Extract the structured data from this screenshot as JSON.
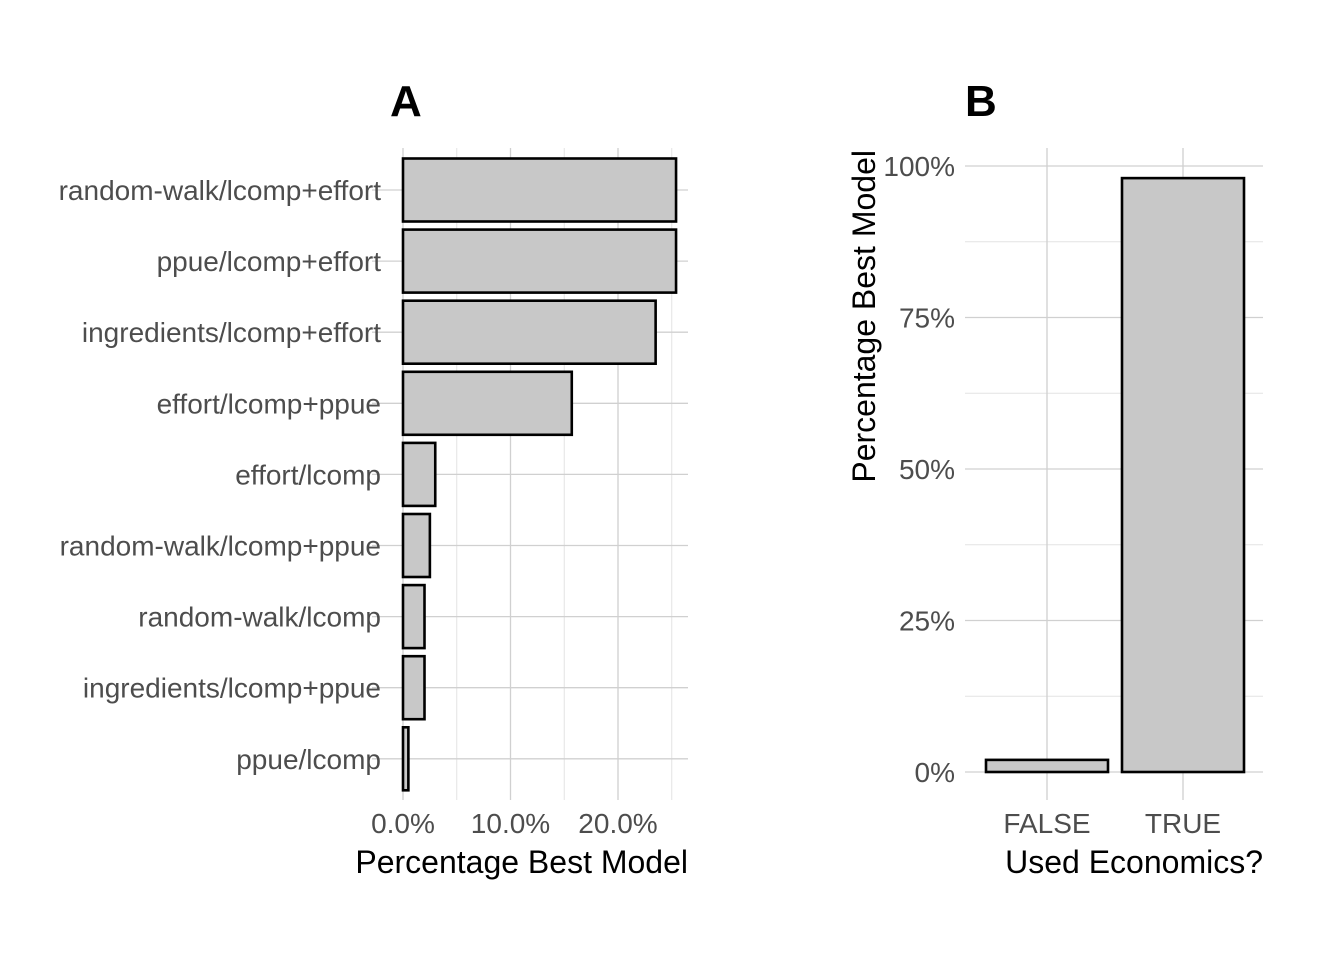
{
  "chart_data": [
    {
      "panel": "A",
      "type": "bar",
      "orientation": "horizontal",
      "categories": [
        "random-walk/lcomp+effort",
        "ppue/lcomp+effort",
        "ingredients/lcomp+effort",
        "effort/lcomp+ppue",
        "effort/lcomp",
        "random-walk/lcomp+ppue",
        "random-walk/lcomp",
        "ingredients/lcomp+ppue",
        "ppue/lcomp"
      ],
      "values": [
        25.4,
        25.4,
        23.5,
        15.7,
        3.0,
        2.5,
        2.0,
        2.0,
        0.5
      ],
      "xlabel": "Percentage Best Model",
      "ylabel": "",
      "xlim": [
        0,
        26.5
      ],
      "x_ticks": [
        0,
        10,
        20
      ],
      "x_tick_labels": [
        "0.0%",
        "10.0%",
        "20.0%"
      ],
      "grid": true
    },
    {
      "panel": "B",
      "type": "bar",
      "orientation": "vertical",
      "categories": [
        "FALSE",
        "TRUE"
      ],
      "values": [
        2,
        98
      ],
      "xlabel": "Used Economics?",
      "ylabel": "Percentage Best Model",
      "ylim": [
        0,
        100
      ],
      "y_ticks": [
        0,
        25,
        50,
        75,
        100
      ],
      "y_tick_labels": [
        "0%",
        "25%",
        "50%",
        "75%",
        "100%"
      ],
      "grid": true
    }
  ]
}
